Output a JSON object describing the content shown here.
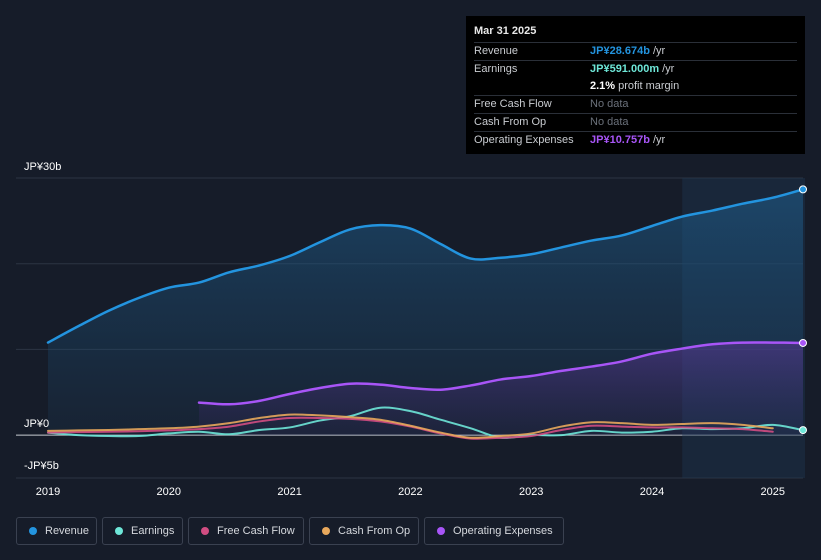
{
  "tooltip": {
    "date": "Mar 31 2025",
    "rows": [
      {
        "label": "Revenue",
        "value": "JP¥28.674b",
        "unit": "/yr",
        "color": "#2394df"
      },
      {
        "label": "Earnings",
        "value": "JP¥591.000m",
        "unit": "/yr",
        "color": "#6ee7d8"
      },
      {
        "label": "",
        "value": "2.1%",
        "unit": "profit margin",
        "color": "#ffffff"
      },
      {
        "label": "Free Cash Flow",
        "value": "No data",
        "unit": "",
        "color": "#6b717b"
      },
      {
        "label": "Cash From Op",
        "value": "No data",
        "unit": "",
        "color": "#6b717b"
      },
      {
        "label": "Operating Expenses",
        "value": "JP¥10.757b",
        "unit": "/yr",
        "color": "#a855f7"
      }
    ]
  },
  "legend": [
    {
      "label": "Revenue",
      "color": "#2394df"
    },
    {
      "label": "Earnings",
      "color": "#6ee7d8"
    },
    {
      "label": "Free Cash Flow",
      "color": "#d14d82"
    },
    {
      "label": "Cash From Op",
      "color": "#e8a85c"
    },
    {
      "label": "Operating Expenses",
      "color": "#a855f7"
    }
  ],
  "chart_data": {
    "type": "area",
    "title": "",
    "xlabel": "",
    "ylabel": "",
    "y_tick_labels": [
      "JP¥30b",
      "JP¥0",
      "-JP¥5b"
    ],
    "ylim": [
      -5,
      30
    ],
    "xlim": [
      2019,
      2025.25
    ],
    "x_ticks": [
      2019,
      2020,
      2021,
      2022,
      2023,
      2024,
      2025
    ],
    "x_tick_labels": [
      "2019",
      "2020",
      "2021",
      "2022",
      "2023",
      "2024",
      "2025"
    ],
    "highlight_from": 2024.25,
    "series": [
      {
        "name": "Revenue",
        "color": "#2394df",
        "fill": true,
        "x": [
          2019.0,
          2019.25,
          2019.5,
          2019.75,
          2020.0,
          2020.25,
          2020.5,
          2020.75,
          2021.0,
          2021.25,
          2021.5,
          2021.75,
          2022.0,
          2022.25,
          2022.5,
          2022.75,
          2023.0,
          2023.25,
          2023.5,
          2023.75,
          2024.0,
          2024.25,
          2024.5,
          2024.75,
          2025.0,
          2025.25
        ],
        "values": [
          10.8,
          12.7,
          14.5,
          16.0,
          17.2,
          17.8,
          19.0,
          19.8,
          20.9,
          22.5,
          24.0,
          24.5,
          24.1,
          22.3,
          20.6,
          20.7,
          21.1,
          21.9,
          22.7,
          23.3,
          24.4,
          25.5,
          26.2,
          27.0,
          27.7,
          28.674
        ]
      },
      {
        "name": "Operating Expenses",
        "color": "#a855f7",
        "fill": true,
        "x": [
          2020.25,
          2020.5,
          2020.75,
          2021.0,
          2021.25,
          2021.5,
          2021.75,
          2022.0,
          2022.25,
          2022.5,
          2022.75,
          2023.0,
          2023.25,
          2023.5,
          2023.75,
          2024.0,
          2024.25,
          2024.5,
          2024.75,
          2025.0,
          2025.25
        ],
        "values": [
          3.8,
          3.6,
          4.0,
          4.8,
          5.5,
          6.0,
          5.9,
          5.5,
          5.3,
          5.8,
          6.5,
          6.9,
          7.5,
          8.0,
          8.6,
          9.5,
          10.1,
          10.6,
          10.8,
          10.8,
          10.757
        ]
      },
      {
        "name": "Earnings",
        "color": "#6ee7d8",
        "fill": false,
        "x": [
          2019.0,
          2019.25,
          2019.5,
          2019.75,
          2020.0,
          2020.25,
          2020.5,
          2020.75,
          2021.0,
          2021.25,
          2021.5,
          2021.75,
          2022.0,
          2022.25,
          2022.5,
          2022.75,
          2023.0,
          2023.25,
          2023.5,
          2023.75,
          2024.0,
          2024.25,
          2024.5,
          2024.75,
          2025.0,
          2025.25
        ],
        "values": [
          0.3,
          0.0,
          -0.1,
          -0.1,
          0.2,
          0.4,
          0.1,
          0.6,
          0.9,
          1.7,
          2.2,
          3.2,
          2.8,
          1.8,
          0.8,
          -0.3,
          0.0,
          0.0,
          0.5,
          0.3,
          0.4,
          0.8,
          0.7,
          0.8,
          1.2,
          0.591
        ]
      },
      {
        "name": "Free Cash Flow",
        "color": "#d14d82",
        "fill": false,
        "x": [
          2019.0,
          2019.25,
          2019.5,
          2019.75,
          2020.0,
          2020.25,
          2020.5,
          2020.75,
          2021.0,
          2021.25,
          2021.5,
          2021.75,
          2022.0,
          2022.25,
          2022.5,
          2022.75,
          2023.0,
          2023.25,
          2023.5,
          2023.75,
          2024.0,
          2024.25,
          2024.5,
          2024.75,
          2025.0
        ],
        "values": [
          0.3,
          0.35,
          0.4,
          0.45,
          0.55,
          0.7,
          1.0,
          1.6,
          2.0,
          2.0,
          1.9,
          1.6,
          1.0,
          0.2,
          -0.4,
          -0.3,
          -0.1,
          0.6,
          1.1,
          1.0,
          0.9,
          0.9,
          0.8,
          0.7,
          0.4
        ]
      },
      {
        "name": "Cash From Op",
        "color": "#e8a85c",
        "fill": false,
        "x": [
          2019.0,
          2019.25,
          2019.5,
          2019.75,
          2020.0,
          2020.25,
          2020.5,
          2020.75,
          2021.0,
          2021.25,
          2021.5,
          2021.75,
          2022.0,
          2022.25,
          2022.5,
          2022.75,
          2023.0,
          2023.25,
          2023.5,
          2023.75,
          2024.0,
          2024.25,
          2024.5,
          2024.75,
          2025.0
        ],
        "values": [
          0.5,
          0.55,
          0.6,
          0.7,
          0.8,
          1.0,
          1.4,
          2.0,
          2.4,
          2.3,
          2.1,
          1.8,
          1.1,
          0.3,
          -0.3,
          -0.1,
          0.2,
          1.0,
          1.5,
          1.4,
          1.2,
          1.3,
          1.4,
          1.2,
          0.8
        ]
      }
    ]
  }
}
